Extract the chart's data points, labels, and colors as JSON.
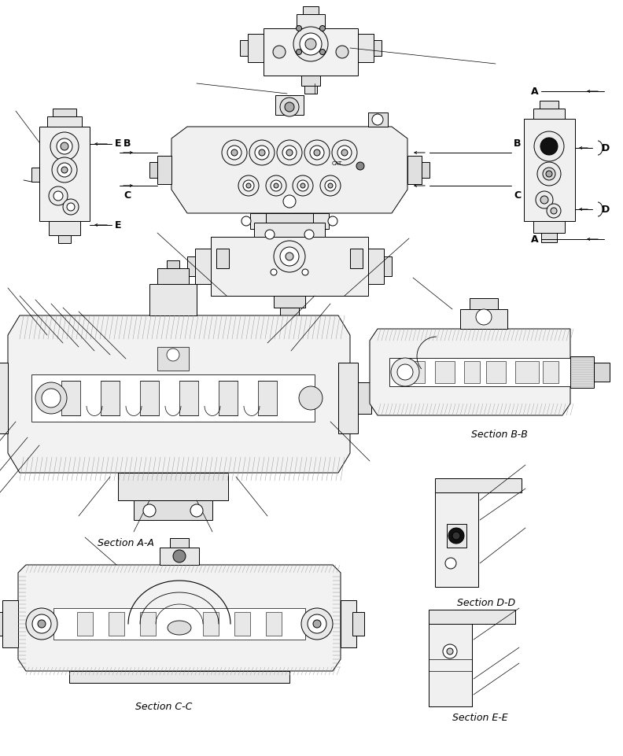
{
  "background_color": "#ffffff",
  "section_labels": {
    "AA": "Section A-A",
    "BB": "Section B-B",
    "CC": "Section C-C",
    "DD": "Section D-D",
    "EE": "Section E-E"
  },
  "label_fontsize": 9,
  "fig_width": 7.92,
  "fig_height": 9.61,
  "dpi": 100
}
